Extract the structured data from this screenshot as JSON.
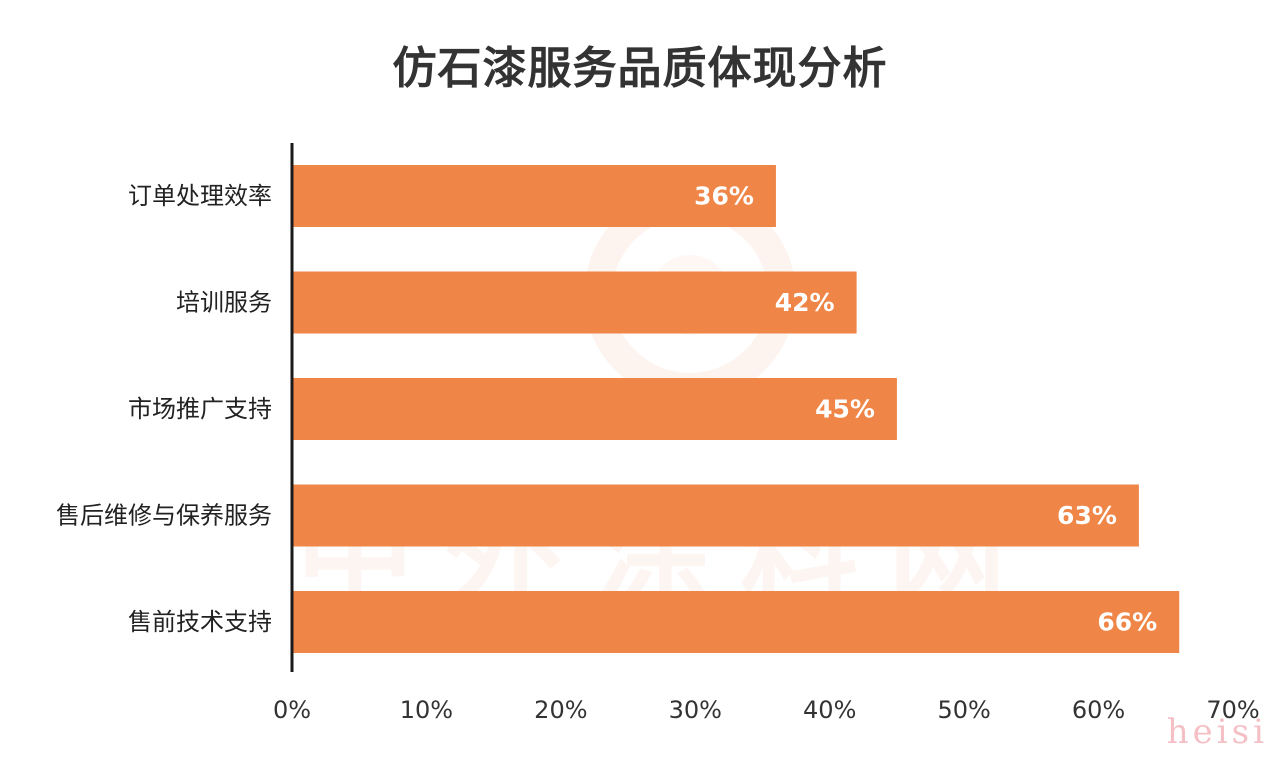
{
  "chart_data": {
    "type": "bar",
    "orientation": "horizontal",
    "title": "仿石漆服务品质体现分析",
    "categories": [
      "订单处理效率",
      "培训服务",
      "市场推广支持",
      "售后维修与保养服务",
      "售前技术支持"
    ],
    "values": [
      36,
      42,
      45,
      63,
      66
    ],
    "value_labels": [
      "36%",
      "42%",
      "45%",
      "63%",
      "66%"
    ],
    "xlim": [
      0,
      70
    ],
    "x_ticks": [
      "0%",
      "10%",
      "20%",
      "30%",
      "40%",
      "50%",
      "60%",
      "70%"
    ],
    "xlabel": "",
    "ylabel": "",
    "grid": false,
    "bar_color": "#ef8648",
    "label_color": "#ffffff",
    "axis_color": "#1a1a1a"
  },
  "watermark": {
    "text": "中外涂料网",
    "corner": "heisi"
  }
}
